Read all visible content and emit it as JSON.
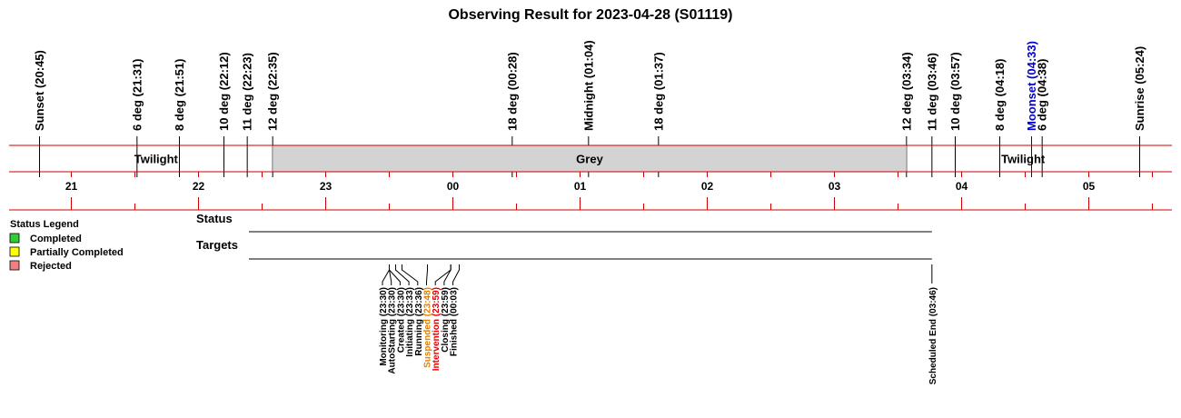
{
  "chart_data": {
    "type": "timeline",
    "title": "Observing Result for 2023-04-28 (S01119)",
    "colors": {
      "axis_red": "#cc0000",
      "grey_band": "#d3d3d3",
      "moon": "#0000cc",
      "suspended": "#e08000",
      "intervention": "#e00000",
      "text": "#000000"
    },
    "night_events": [
      {
        "label": "Sunset (20:45)",
        "time": "20:45",
        "color": "#000000"
      },
      {
        "label": "6 deg (21:31)",
        "time": "21:31",
        "color": "#000000"
      },
      {
        "label": "8 deg (21:51)",
        "time": "21:51",
        "color": "#000000"
      },
      {
        "label": "10 deg (22:12)",
        "time": "22:12",
        "color": "#000000"
      },
      {
        "label": "11 deg (22:23)",
        "time": "22:23",
        "color": "#000000"
      },
      {
        "label": "12 deg (22:35)",
        "time": "22:35",
        "color": "#000000"
      },
      {
        "label": "18 deg (00:28)",
        "time": "00:28",
        "color": "#000000"
      },
      {
        "label": "Midnight (01:04)",
        "time": "01:04",
        "color": "#000000"
      },
      {
        "label": "18 deg (01:37)",
        "time": "01:37",
        "color": "#000000"
      },
      {
        "label": "12 deg (03:34)",
        "time": "03:34",
        "color": "#000000"
      },
      {
        "label": "11 deg (03:46)",
        "time": "03:46",
        "color": "#000000"
      },
      {
        "label": "10 deg (03:57)",
        "time": "03:57",
        "color": "#000000"
      },
      {
        "label": "8 deg (04:18)",
        "time": "04:18",
        "color": "#000000"
      },
      {
        "label": "Moonset (04:33)",
        "time": "04:33",
        "color": "#0000cc"
      },
      {
        "label": "6 deg (04:38)",
        "time": "04:38",
        "color": "#000000"
      },
      {
        "label": "Sunrise (05:24)",
        "time": "05:24",
        "color": "#000000"
      }
    ],
    "bands": [
      {
        "label": "Twilight",
        "start": "20:45",
        "end": "22:35",
        "shaded": false
      },
      {
        "label": "Grey",
        "start": "22:35",
        "end": "03:34",
        "shaded": true
      },
      {
        "label": "Twilight",
        "start": "03:34",
        "end": "05:24",
        "shaded": false
      }
    ],
    "hour_ticks": [
      "21",
      "22",
      "23",
      "00",
      "01",
      "02",
      "03",
      "04",
      "05"
    ],
    "rows": [
      {
        "label": "Status"
      },
      {
        "label": "Targets"
      }
    ],
    "status_events": [
      {
        "label": "Monitoring (23:30)",
        "time": "23:30",
        "color": "#000000"
      },
      {
        "label": "AutoStarting (23:30)",
        "time": "23:30",
        "color": "#000000"
      },
      {
        "label": "Created (23:30)",
        "time": "23:30",
        "color": "#000000"
      },
      {
        "label": "Initiating (23:33)",
        "time": "23:33",
        "color": "#000000"
      },
      {
        "label": "Running (23:36)",
        "time": "23:36",
        "color": "#000000"
      },
      {
        "label": "Suspended (23:48)",
        "time": "23:48",
        "color": "#e08000"
      },
      {
        "label": "Intervention (23:59)",
        "time": "23:59",
        "color": "#e00000"
      },
      {
        "label": "Closing (23:59)",
        "time": "23:59",
        "color": "#000000"
      },
      {
        "label": "Finished (00:03)",
        "time": "00:03",
        "color": "#000000"
      },
      {
        "label": "Scheduled End (03:46)",
        "time": "03:46",
        "color": "#000000"
      }
    ],
    "legend": {
      "title": "Status Legend",
      "placement": "left",
      "items": [
        {
          "label": "Completed",
          "color": "#33cc33"
        },
        {
          "label": "Partially Completed",
          "color": "#ffff00"
        },
        {
          "label": "Rejected",
          "color": "#f08080"
        }
      ]
    }
  }
}
